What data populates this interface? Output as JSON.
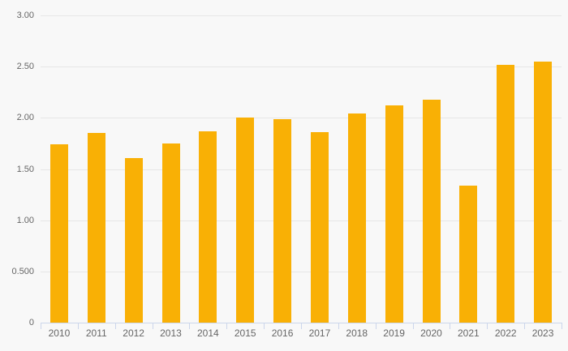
{
  "chart": {
    "background_color": "#f8f8f8",
    "gridline_color": "#e6e6e6",
    "axis_line_color": "#ccd6eb",
    "label_color": "#666666",
    "bar_color": "#f9b005"
  },
  "chart_data": {
    "type": "bar",
    "title": "",
    "xlabel": "",
    "ylabel": "",
    "categories": [
      "2010",
      "2011",
      "2012",
      "2013",
      "2014",
      "2015",
      "2016",
      "2017",
      "2018",
      "2019",
      "2020",
      "2021",
      "2022",
      "2023"
    ],
    "values": [
      1.74,
      1.85,
      1.61,
      1.75,
      1.87,
      2.0,
      1.99,
      1.86,
      2.04,
      2.12,
      2.18,
      1.34,
      2.52,
      2.55
    ],
    "ylim": [
      0,
      3.0
    ],
    "grid": true,
    "legend": "none",
    "yticks": [
      {
        "value": 3.0,
        "label": "3.00"
      },
      {
        "value": 2.5,
        "label": "2.50"
      },
      {
        "value": 2.0,
        "label": "2.00"
      },
      {
        "value": 1.5,
        "label": "1.50"
      },
      {
        "value": 1.0,
        "label": "1.00"
      },
      {
        "value": 0.5,
        "label": "0.500"
      },
      {
        "value": 0.0,
        "label": "0"
      }
    ]
  }
}
